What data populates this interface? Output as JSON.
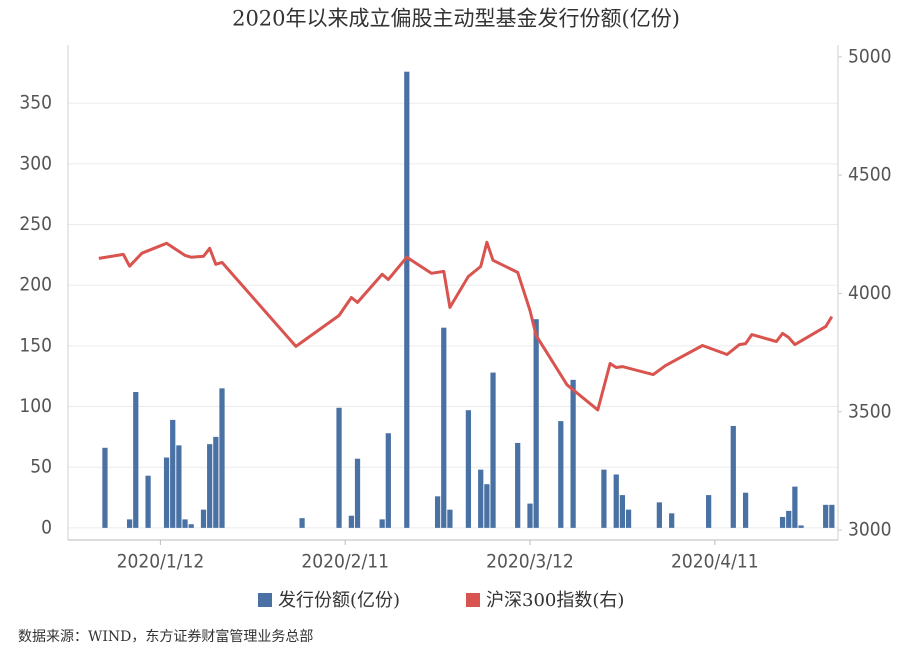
{
  "chart_data": {
    "type": "combo",
    "title": "2020年以来成立偏股主动型基金发行份额(亿份)",
    "source": "数据来源：WIND，东方证券财富管理业务总部",
    "xlim": [
      "2019/12/28",
      "2020/5/1"
    ],
    "xticks": [
      "2020/1/12",
      "2020/2/11",
      "2020/3/12",
      "2020/4/11"
    ],
    "ylim": [
      -10,
      398
    ],
    "yticks": [
      0,
      50,
      100,
      150,
      200,
      250,
      300,
      350
    ],
    "y2lim": [
      2958,
      5050
    ],
    "y2ticks": [
      3000,
      3500,
      4000,
      4500,
      5000
    ],
    "grid": true,
    "legend": "bottom",
    "series": [
      {
        "name": "发行份额(亿份)",
        "type": "bar",
        "color": "#4a71a4",
        "x": [
          "2020/1/3",
          "2020/1/7",
          "2020/1/8",
          "2020/1/10",
          "2020/1/13",
          "2020/1/14",
          "2020/1/15",
          "2020/1/16",
          "2020/1/17",
          "2020/1/19",
          "2020/1/20",
          "2020/1/21",
          "2020/1/22",
          "2020/2/4",
          "2020/2/10",
          "2020/2/12",
          "2020/2/13",
          "2020/2/17",
          "2020/2/18",
          "2020/2/21",
          "2020/2/26",
          "2020/2/27",
          "2020/2/28",
          "2020/3/2",
          "2020/3/4",
          "2020/3/5",
          "2020/3/6",
          "2020/3/10",
          "2020/3/12",
          "2020/3/13",
          "2020/3/17",
          "2020/3/19",
          "2020/3/24",
          "2020/3/26",
          "2020/3/27",
          "2020/3/28",
          "2020/4/2",
          "2020/4/4",
          "2020/4/10",
          "2020/4/14",
          "2020/4/16",
          "2020/4/22",
          "2020/4/23",
          "2020/4/24",
          "2020/4/25",
          "2020/4/29",
          "2020/4/30"
        ],
        "values": [
          66,
          7,
          112,
          43,
          58,
          89,
          68,
          7,
          3,
          15,
          69,
          75,
          115,
          8,
          99,
          10,
          57,
          7,
          78,
          376,
          26,
          165,
          15,
          97,
          48,
          36,
          128,
          70,
          20,
          172,
          88,
          122,
          48,
          44,
          27,
          15,
          21,
          12,
          27,
          84,
          29,
          9,
          14,
          34,
          2,
          19,
          19
        ]
      },
      {
        "name": "沪深300指数(右)",
        "type": "line",
        "axis": "y2",
        "color": "#d9534f",
        "x": [
          "2020/1/2",
          "2020/1/6",
          "2020/1/7",
          "2020/1/9",
          "2020/1/13",
          "2020/1/16",
          "2020/1/17",
          "2020/1/19",
          "2020/1/20",
          "2020/1/21",
          "2020/1/22",
          "2020/2/3",
          "2020/2/10",
          "2020/2/12",
          "2020/2/13",
          "2020/2/17",
          "2020/2/18",
          "2020/2/21",
          "2020/2/25",
          "2020/2/27",
          "2020/2/28",
          "2020/3/2",
          "2020/3/4",
          "2020/3/5",
          "2020/3/6",
          "2020/3/10",
          "2020/3/12",
          "2020/3/13",
          "2020/3/18",
          "2020/3/23",
          "2020/3/25",
          "2020/3/26",
          "2020/3/27",
          "2020/4/1",
          "2020/4/3",
          "2020/4/9",
          "2020/4/13",
          "2020/4/15",
          "2020/4/16",
          "2020/4/17",
          "2020/4/21",
          "2020/4/22",
          "2020/4/23",
          "2020/4/24",
          "2020/4/29",
          "2020/4/30"
        ],
        "values": [
          4148,
          4165,
          4115,
          4170,
          4212,
          4161,
          4153,
          4157,
          4191,
          4123,
          4131,
          3776,
          3907,
          3983,
          3962,
          4081,
          4059,
          4153,
          4085,
          4093,
          3941,
          4072,
          4114,
          4216,
          4140,
          4089,
          3928,
          3822,
          3614,
          3508,
          3704,
          3687,
          3691,
          3657,
          3695,
          3780,
          3742,
          3784,
          3788,
          3826,
          3797,
          3831,
          3814,
          3784,
          3860,
          3902
        ]
      }
    ]
  }
}
